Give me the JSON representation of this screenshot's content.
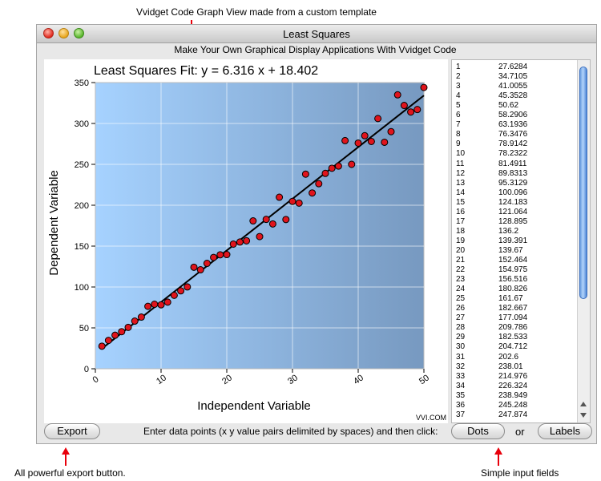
{
  "annotations": {
    "top": "Vvidget Code Graph View made from a custom template",
    "export": "All powerful export button.",
    "input": "Simple input fields"
  },
  "window": {
    "title": "Least Squares",
    "subtitle": "Make Your Own Graphical Display Applications With Vvidget Code"
  },
  "chart_data": {
    "type": "scatter",
    "title": "Least Squares Fit: y = 6.316 x + 18.402",
    "xlabel": "Independent Variable",
    "ylabel": "Dependent Variable",
    "xlim": [
      0,
      50
    ],
    "ylim": [
      0,
      350
    ],
    "x_ticks": [
      "0",
      "10",
      "20",
      "30",
      "40",
      "50"
    ],
    "y_ticks": [
      "0",
      "50",
      "100",
      "150",
      "200",
      "250",
      "300",
      "350"
    ],
    "grid": true,
    "fit_line": {
      "slope": 6.316,
      "intercept": 18.402
    },
    "watermark": "VVI.COM",
    "points": [
      {
        "x": 1,
        "y": 27.6284
      },
      {
        "x": 2,
        "y": 34.7105
      },
      {
        "x": 3,
        "y": 41.0055
      },
      {
        "x": 4,
        "y": 45.3528
      },
      {
        "x": 5,
        "y": 50.62
      },
      {
        "x": 6,
        "y": 58.2906
      },
      {
        "x": 7,
        "y": 63.1936
      },
      {
        "x": 8,
        "y": 76.3476
      },
      {
        "x": 9,
        "y": 78.9142
      },
      {
        "x": 10,
        "y": 78.2322
      },
      {
        "x": 11,
        "y": 81.4911
      },
      {
        "x": 12,
        "y": 89.8313
      },
      {
        "x": 13,
        "y": 95.3129
      },
      {
        "x": 14,
        "y": 100.096
      },
      {
        "x": 15,
        "y": 124.183
      },
      {
        "x": 16,
        "y": 121.064
      },
      {
        "x": 17,
        "y": 128.895
      },
      {
        "x": 18,
        "y": 136.2
      },
      {
        "x": 19,
        "y": 139.391
      },
      {
        "x": 20,
        "y": 139.67
      },
      {
        "x": 21,
        "y": 152.464
      },
      {
        "x": 22,
        "y": 154.975
      },
      {
        "x": 23,
        "y": 156.516
      },
      {
        "x": 24,
        "y": 180.826
      },
      {
        "x": 25,
        "y": 161.67
      },
      {
        "x": 26,
        "y": 182.667
      },
      {
        "x": 27,
        "y": 177.094
      },
      {
        "x": 28,
        "y": 209.786
      },
      {
        "x": 29,
        "y": 182.533
      },
      {
        "x": 30,
        "y": 204.712
      },
      {
        "x": 31,
        "y": 202.6
      },
      {
        "x": 32,
        "y": 238.01
      },
      {
        "x": 33,
        "y": 214.976
      },
      {
        "x": 34,
        "y": 226.324
      },
      {
        "x": 35,
        "y": 238.949
      },
      {
        "x": 36,
        "y": 245.248
      },
      {
        "x": 37,
        "y": 247.874
      },
      {
        "x": 38,
        "y": 279
      },
      {
        "x": 39,
        "y": 250
      },
      {
        "x": 40,
        "y": 276
      },
      {
        "x": 41,
        "y": 285
      },
      {
        "x": 42,
        "y": 278
      },
      {
        "x": 43,
        "y": 306
      },
      {
        "x": 44,
        "y": 277
      },
      {
        "x": 45,
        "y": 290
      },
      {
        "x": 46,
        "y": 335
      },
      {
        "x": 47,
        "y": 322
      },
      {
        "x": 48,
        "y": 314
      },
      {
        "x": 49,
        "y": 317
      },
      {
        "x": 50,
        "y": 344
      }
    ]
  },
  "data_list": {
    "rows": [
      {
        "index": "1",
        "value": "27.6284"
      },
      {
        "index": "2",
        "value": "34.7105"
      },
      {
        "index": "3",
        "value": "41.0055"
      },
      {
        "index": "4",
        "value": "45.3528"
      },
      {
        "index": "5",
        "value": "50.62"
      },
      {
        "index": "6",
        "value": "58.2906"
      },
      {
        "index": "7",
        "value": "63.1936"
      },
      {
        "index": "8",
        "value": "76.3476"
      },
      {
        "index": "9",
        "value": "78.9142"
      },
      {
        "index": "10",
        "value": "78.2322"
      },
      {
        "index": "11",
        "value": "81.4911"
      },
      {
        "index": "12",
        "value": "89.8313"
      },
      {
        "index": "13",
        "value": "95.3129"
      },
      {
        "index": "14",
        "value": "100.096"
      },
      {
        "index": "15",
        "value": "124.183"
      },
      {
        "index": "16",
        "value": "121.064"
      },
      {
        "index": "17",
        "value": "128.895"
      },
      {
        "index": "18",
        "value": "136.2"
      },
      {
        "index": "19",
        "value": "139.391"
      },
      {
        "index": "20",
        "value": "139.67"
      },
      {
        "index": "21",
        "value": "152.464"
      },
      {
        "index": "22",
        "value": "154.975"
      },
      {
        "index": "23",
        "value": "156.516"
      },
      {
        "index": "24",
        "value": "180.826"
      },
      {
        "index": "25",
        "value": "161.67"
      },
      {
        "index": "26",
        "value": "182.667"
      },
      {
        "index": "27",
        "value": "177.094"
      },
      {
        "index": "28",
        "value": "209.786"
      },
      {
        "index": "29",
        "value": "182.533"
      },
      {
        "index": "30",
        "value": "204.712"
      },
      {
        "index": "31",
        "value": "202.6"
      },
      {
        "index": "32",
        "value": "238.01"
      },
      {
        "index": "33",
        "value": "214.976"
      },
      {
        "index": "34",
        "value": "226.324"
      },
      {
        "index": "35",
        "value": "238.949"
      },
      {
        "index": "36",
        "value": "245.248"
      },
      {
        "index": "37",
        "value": "247.874"
      }
    ]
  },
  "controls": {
    "export_label": "Export",
    "instruction": "Enter data points (x y value pairs delimited by spaces) and then click:",
    "dots_label": "Dots",
    "or_text": "or",
    "labels_label": "Labels"
  },
  "colors": {
    "annotation_arrow": "#e8000b",
    "point_fill": "#e0141c",
    "plot_bg_light": "#a6d2ff",
    "plot_bg_dark": "#7799c0"
  }
}
